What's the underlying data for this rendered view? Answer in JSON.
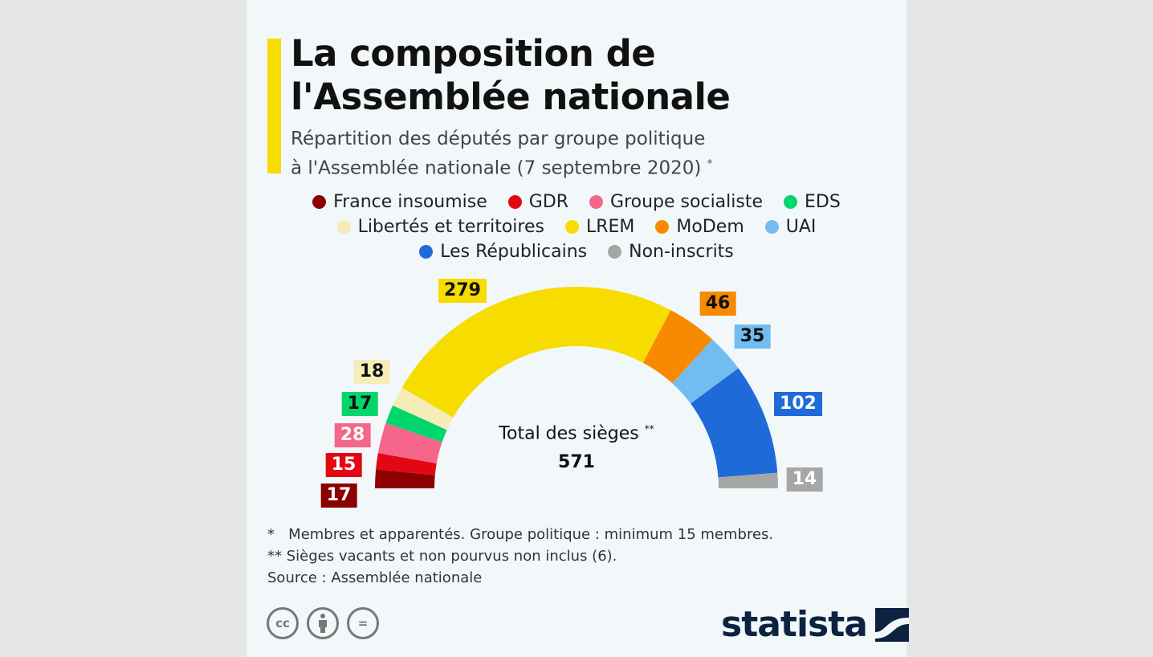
{
  "title_line1": "La composition de",
  "title_line2": "l'Assemblée nationale",
  "subtitle_line1": "Répartition des députés par groupe politique",
  "subtitle_line2": "à l'Assemblée nationale (7 septembre 2020)",
  "subtitle_mark": "*",
  "chart_data": {
    "type": "pie",
    "variant": "half-donut",
    "legend_position": "top",
    "series": [
      {
        "name": "France insoumise",
        "value": 17,
        "color": "#8b0000"
      },
      {
        "name": "GDR",
        "value": 15,
        "color": "#e30613"
      },
      {
        "name": "Groupe socialiste",
        "value": 28,
        "color": "#f5668a"
      },
      {
        "name": "EDS",
        "value": 17,
        "color": "#00d66c"
      },
      {
        "name": "Libertés et territoires",
        "value": 18,
        "color": "#f5ecb8"
      },
      {
        "name": "LREM",
        "value": 279,
        "color": "#f7dc00"
      },
      {
        "name": "MoDem",
        "value": 46,
        "color": "#f78a00"
      },
      {
        "name": "UAI",
        "value": 35,
        "color": "#72bcf2"
      },
      {
        "name": "Les Républicains",
        "value": 102,
        "color": "#1f6ad9"
      },
      {
        "name": "Non-inscrits",
        "value": 14,
        "color": "#a6a6a6"
      }
    ],
    "center_label": "Total des sièges",
    "center_mark": "**",
    "total": "571"
  },
  "notes": {
    "n1_mark": "*",
    "n1": "Membres et apparentés. Groupe politique : minimum 15 membres.",
    "n2": "** Sièges vacants et non pourvus non inclus (6).",
    "source": "Source : Assemblée nationale"
  },
  "license_icons": [
    "cc-icon",
    "by-icon",
    "nd-icon"
  ],
  "logo": "statista"
}
